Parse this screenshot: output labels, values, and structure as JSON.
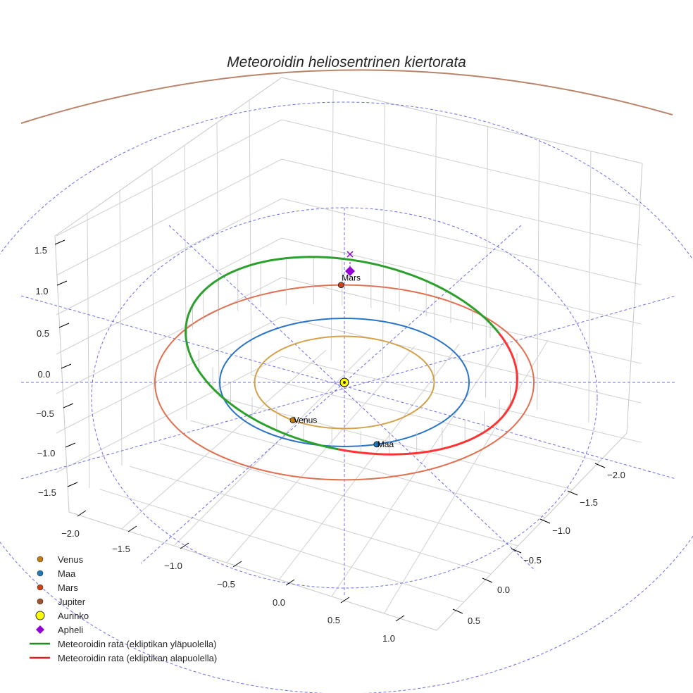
{
  "chart_data": {
    "type": "line3d",
    "title": "Meteoroidin heliosentrinen kiertorata",
    "planets": [
      {
        "name": "Venus",
        "radius_au": 0.72,
        "color": "#d4a04a",
        "marker_color": "#c27c0e",
        "label": "Venus",
        "angle_deg": 235
      },
      {
        "name": "Maa",
        "radius_au": 1.0,
        "color": "#2a74c8",
        "marker_color": "#1f77b4",
        "label": "Maa",
        "angle_deg": 285
      },
      {
        "name": "Mars",
        "radius_au": 1.52,
        "color": "#e07050",
        "marker_color": "#cc4411",
        "label": "Mars",
        "angle_deg": 91
      },
      {
        "name": "Jupiter",
        "radius_au": 5.2,
        "color": "#b9846a",
        "marker_color": "#a0522d"
      }
    ],
    "sun": {
      "name": "Aurinko",
      "color": "#ffff00"
    },
    "aphelion": {
      "name": "Apheli",
      "color": "#9400d3"
    },
    "meteoroid_orbit": {
      "above_label": "Meteoroidin rata (ekliptikan yläpuolella)",
      "below_label": "Meteoroidin rata (ekliptikan alapuolella)",
      "above_color": "#2ca02c",
      "below_color": "#ff3333"
    },
    "z_ticks": [
      "1.5",
      "1.0",
      "0.5",
      "0.0",
      "−0.5",
      "−1.0",
      "−1.5"
    ],
    "x_ticks": [
      "−2.0",
      "−1.5",
      "−1.0",
      "−0.5",
      "0.0",
      "0.5",
      "1.0"
    ],
    "y_ticks": [
      "−2.0",
      "−1.5",
      "−1.0",
      "−0.5",
      "0.0",
      "0.5"
    ],
    "legend": {
      "placement": "bottom-left",
      "entries": [
        "Venus",
        "Maa",
        "Mars",
        "Jupiter",
        "Aurinko",
        "Apheli",
        "Meteoroidin rata (ekliptikan yläpuolella)",
        "Meteoroidin rata (ekliptikan alapuolella)"
      ]
    }
  }
}
